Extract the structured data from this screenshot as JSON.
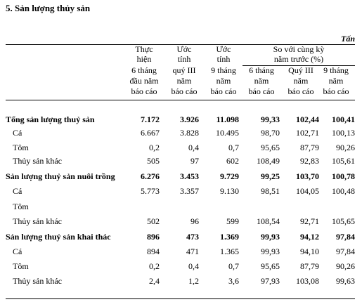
{
  "title": "5. Sản lượng thủy sản",
  "unit": "Tấn",
  "table": {
    "columns": [
      [
        "Thực",
        "hiện",
        "6 tháng",
        "đầu năm",
        "báo cáo"
      ],
      [
        "Ước",
        "tính",
        "quý III",
        "năm",
        "báo cáo"
      ],
      [
        "Ước",
        "tính",
        "9 tháng",
        "năm",
        "báo cáo"
      ],
      [
        "6 tháng",
        "năm",
        "báo cáo"
      ],
      [
        "Quý III",
        "năm",
        "báo cáo"
      ],
      [
        "9 tháng",
        "năm",
        "báo cáo"
      ]
    ],
    "group": [
      "So với cùng kỳ",
      "năm trước (%)"
    ],
    "rows": [
      {
        "label": "Tổng sản lượng thuỷ sản",
        "bold": true,
        "values": [
          "7.172",
          "3.926",
          "11.098",
          "99,33",
          "102,44",
          "100,41"
        ]
      },
      {
        "label": "Cá",
        "values": [
          "6.667",
          "3.828",
          "10.495",
          "98,70",
          "102,71",
          "100,13"
        ]
      },
      {
        "label": "Tôm",
        "values": [
          "0,2",
          "0,4",
          "0,7",
          "95,65",
          "87,79",
          "90,26"
        ]
      },
      {
        "label": "Thủy sản khác",
        "values": [
          "505",
          "97",
          "602",
          "108,49",
          "92,83",
          "105,61"
        ]
      },
      {
        "label": "Sản lượng thuỷ sản nuôi trồng",
        "bold": true,
        "values": [
          "6.276",
          "3.453",
          "9.729",
          "99,25",
          "103,70",
          "100,78"
        ]
      },
      {
        "label": "Cá",
        "values": [
          "5.773",
          "3.357",
          "9.130",
          "98,51",
          "104,05",
          "100,48"
        ]
      },
      {
        "label": "Tôm",
        "values": [
          null,
          null,
          null,
          null,
          null,
          null
        ]
      },
      {
        "label": "Thủy sản khác",
        "values": [
          "502",
          "96",
          "599",
          "108,54",
          "92,71",
          "105,65"
        ]
      },
      {
        "label": "Sản lượng thuỷ sản khai thác",
        "bold": true,
        "values": [
          "896",
          "473",
          "1.369",
          "99,93",
          "94,12",
          "97,84"
        ]
      },
      {
        "label": "Cá",
        "values": [
          "894",
          "471",
          "1.365",
          "99,93",
          "94,10",
          "97,84"
        ]
      },
      {
        "label": "Tôm",
        "values": [
          "0,2",
          "0,4",
          "0,7",
          "95,65",
          "87,79",
          "90,26"
        ]
      },
      {
        "label": "Thủy sản khác",
        "values": [
          "2,4",
          "1,2",
          "3,6",
          "97,93",
          "103,08",
          "99,63"
        ]
      }
    ]
  }
}
